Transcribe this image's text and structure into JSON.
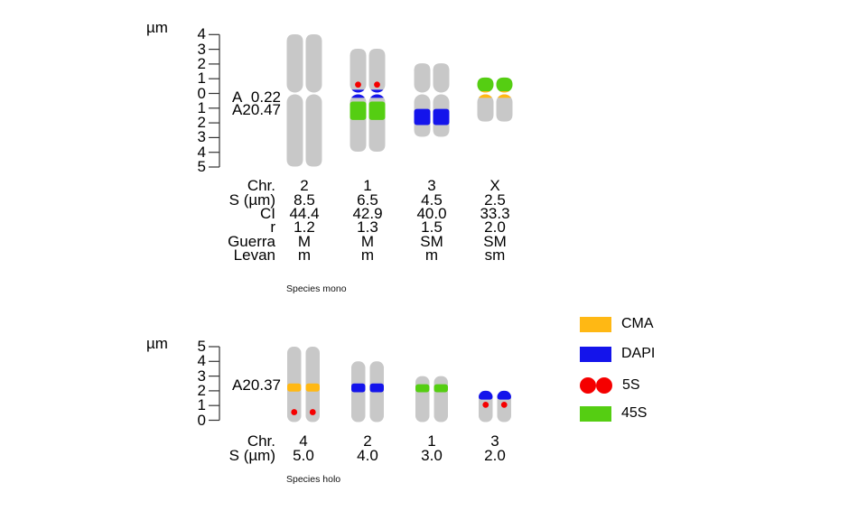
{
  "colors": {
    "chromosome_body": "#C8C8C8",
    "CMA": "#FFB814",
    "DAPI": "#1414EB",
    "5S": "#F50000",
    "45S": "#55CE12"
  },
  "legend": {
    "items": [
      {
        "label": "CMA",
        "swatch": "rect",
        "mark": "CMA"
      },
      {
        "label": "DAPI",
        "swatch": "rect",
        "mark": "DAPI"
      },
      {
        "label": "5S",
        "swatch": "dots",
        "mark": "5S"
      },
      {
        "label": "45S",
        "swatch": "rect",
        "mark": "45S"
      }
    ]
  },
  "karyotypes": [
    {
      "name": "Species mono",
      "type": "monocentric",
      "axis": {
        "unit": "µm",
        "tick_labels": [
          "4",
          "3",
          "2",
          "1",
          "0",
          "1",
          "2",
          "3",
          "4",
          "5"
        ]
      },
      "indices": [
        {
          "label": "A",
          "value": "0.22"
        },
        {
          "label": "A2",
          "value": "0.47"
        }
      ],
      "table": {
        "rows": [
          {
            "label": "Chr.",
            "values": [
              "2",
              "1",
              "3",
              "X"
            ]
          },
          {
            "label": "S (µm)",
            "values": [
              "8.5",
              "6.5",
              "4.5",
              "2.5"
            ]
          },
          {
            "label": "CI",
            "values": [
              "44.4",
              "42.9",
              "40.0",
              "33.3"
            ]
          },
          {
            "label": "r",
            "values": [
              "1.2",
              "1.3",
              "1.5",
              "2.0"
            ]
          },
          {
            "label": "Guerra",
            "values": [
              "M",
              "M",
              "SM",
              "SM"
            ]
          },
          {
            "label": "Levan",
            "values": [
              "m",
              "m",
              "m",
              "sm"
            ]
          }
        ]
      },
      "chromosomes": [
        {
          "name": "2",
          "size_um": 8.5,
          "centromeric_index": 44.4,
          "marks": []
        },
        {
          "name": "1",
          "size_um": 6.5,
          "centromeric_index": 42.9,
          "marks": [
            {
              "mark": "DAPI",
              "style": "band",
              "from_um": -0.25,
              "to_um": 0.3
            },
            {
              "mark": "45S",
              "style": "band",
              "from_um": 0.55,
              "to_um": 1.8
            },
            {
              "mark": "5S",
              "style": "dot",
              "pos_um": -0.6
            }
          ]
        },
        {
          "name": "3",
          "size_um": 4.5,
          "centromeric_index": 40.0,
          "marks": [
            {
              "mark": "DAPI",
              "style": "band",
              "from_um": 1.05,
              "to_um": 2.15
            }
          ]
        },
        {
          "name": "X",
          "size_um": 2.5,
          "centromeric_index": 33.3,
          "marks": [
            {
              "mark": "45S",
              "style": "band",
              "from_um": -1.1,
              "to_um": -0.1
            },
            {
              "mark": "CMA",
              "style": "band",
              "from_um": -0.15,
              "to_um": 0.3
            }
          ]
        }
      ]
    },
    {
      "name": "Species holo",
      "type": "holocentric",
      "axis": {
        "unit": "µm",
        "tick_labels": [
          "5",
          "4",
          "3",
          "2",
          "1",
          "0"
        ]
      },
      "indices": [
        {
          "label": "A2",
          "value": "0.37"
        }
      ],
      "table": {
        "rows": [
          {
            "label": "Chr.",
            "values": [
              "4",
              "2",
              "1",
              "3"
            ]
          },
          {
            "label": "S (µm)",
            "values": [
              "5.0",
              "4.0",
              "3.0",
              "2.0"
            ]
          }
        ]
      },
      "chromosomes": [
        {
          "name": "4",
          "size_um": 5.0,
          "marks": [
            {
              "mark": "CMA",
              "style": "band",
              "from_um": 1.95,
              "to_um": 2.5
            },
            {
              "mark": "5S",
              "style": "dot",
              "pos_um": 0.55
            }
          ]
        },
        {
          "name": "2",
          "size_um": 4.0,
          "marks": [
            {
              "mark": "DAPI",
              "style": "band",
              "from_um": 1.9,
              "to_um": 2.5
            }
          ]
        },
        {
          "name": "1",
          "size_um": 3.0,
          "marks": [
            {
              "mark": "45S",
              "style": "band",
              "from_um": 1.9,
              "to_um": 2.45
            }
          ]
        },
        {
          "name": "3",
          "size_um": 2.0,
          "marks": [
            {
              "mark": "DAPI",
              "style": "band",
              "from_um": 1.4,
              "to_um": 2.05
            },
            {
              "mark": "5S",
              "style": "dot",
              "pos_um": 1.05
            }
          ]
        }
      ]
    }
  ]
}
